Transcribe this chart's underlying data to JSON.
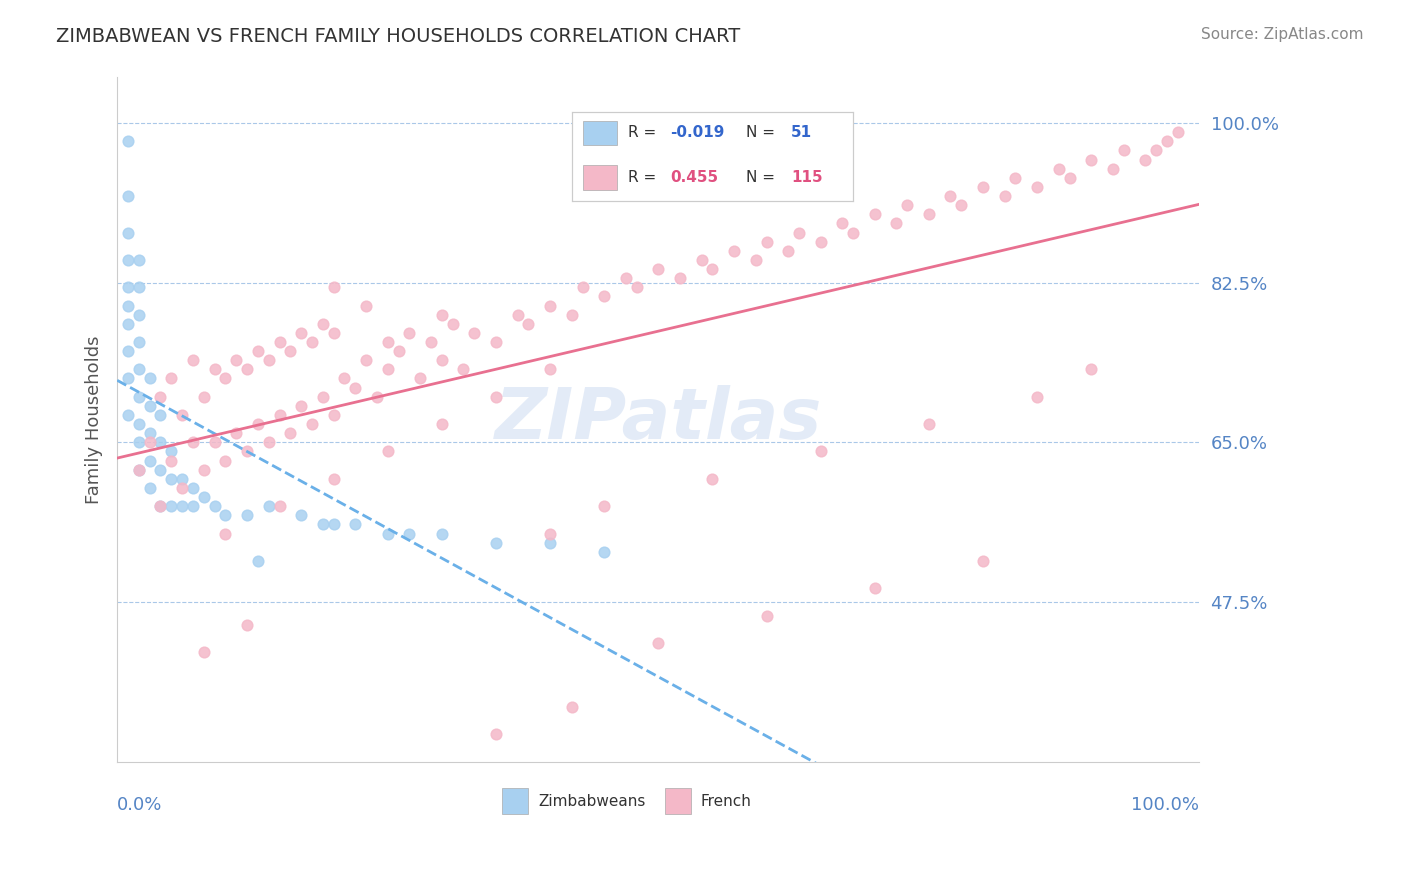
{
  "title": "ZIMBABWEAN VS FRENCH FAMILY HOUSEHOLDS CORRELATION CHART",
  "source_text": "Source: ZipAtlas.com",
  "ylabel": "Family Households",
  "y_ticks": [
    0.475,
    0.65,
    0.825,
    1.0
  ],
  "y_tick_labels": [
    "47.5%",
    "65.0%",
    "82.5%",
    "100.0%"
  ],
  "x_lim": [
    0.0,
    1.0
  ],
  "y_lim": [
    0.3,
    1.05
  ],
  "zimbabwe_color": "#a8d0f0",
  "french_color": "#f4b8c8",
  "zimbabwe_trend_color": "#6ab0e8",
  "french_trend_color": "#e87090",
  "zimbabwe_R": "-0.019",
  "zimbabwe_N": "51",
  "french_R": "0.455",
  "french_N": "115",
  "watermark": "ZIPatlas",
  "watermark_color": "#c8d8f0",
  "legend_R_label": "R = ",
  "legend_N_label": "N = ",
  "zim_R_color": "#3366cc",
  "fr_R_color": "#e05080",
  "zimbabwe_scatter_x": [
    0.01,
    0.01,
    0.01,
    0.01,
    0.01,
    0.01,
    0.01,
    0.01,
    0.01,
    0.01,
    0.02,
    0.02,
    0.02,
    0.02,
    0.02,
    0.02,
    0.02,
    0.02,
    0.02,
    0.03,
    0.03,
    0.03,
    0.03,
    0.03,
    0.04,
    0.04,
    0.04,
    0.04,
    0.05,
    0.05,
    0.05,
    0.06,
    0.06,
    0.07,
    0.07,
    0.08,
    0.09,
    0.1,
    0.12,
    0.13,
    0.14,
    0.17,
    0.19,
    0.2,
    0.22,
    0.25,
    0.27,
    0.3,
    0.35,
    0.4,
    0.45
  ],
  "zimbabwe_scatter_y": [
    0.68,
    0.72,
    0.75,
    0.78,
    0.8,
    0.82,
    0.85,
    0.88,
    0.92,
    0.98,
    0.62,
    0.65,
    0.67,
    0.7,
    0.73,
    0.76,
    0.79,
    0.82,
    0.85,
    0.6,
    0.63,
    0.66,
    0.69,
    0.72,
    0.58,
    0.62,
    0.65,
    0.68,
    0.58,
    0.61,
    0.64,
    0.58,
    0.61,
    0.58,
    0.6,
    0.59,
    0.58,
    0.57,
    0.57,
    0.52,
    0.58,
    0.57,
    0.56,
    0.56,
    0.56,
    0.55,
    0.55,
    0.55,
    0.54,
    0.54,
    0.53
  ],
  "french_scatter_x": [
    0.02,
    0.03,
    0.04,
    0.04,
    0.05,
    0.05,
    0.06,
    0.06,
    0.07,
    0.07,
    0.08,
    0.08,
    0.09,
    0.09,
    0.1,
    0.1,
    0.11,
    0.11,
    0.12,
    0.12,
    0.13,
    0.13,
    0.14,
    0.14,
    0.15,
    0.15,
    0.16,
    0.16,
    0.17,
    0.17,
    0.18,
    0.18,
    0.19,
    0.19,
    0.2,
    0.2,
    0.21,
    0.22,
    0.23,
    0.23,
    0.24,
    0.25,
    0.26,
    0.27,
    0.28,
    0.29,
    0.3,
    0.31,
    0.32,
    0.33,
    0.35,
    0.37,
    0.38,
    0.4,
    0.42,
    0.43,
    0.45,
    0.47,
    0.48,
    0.5,
    0.52,
    0.54,
    0.55,
    0.57,
    0.59,
    0.6,
    0.62,
    0.63,
    0.65,
    0.67,
    0.68,
    0.7,
    0.72,
    0.73,
    0.75,
    0.77,
    0.78,
    0.8,
    0.82,
    0.83,
    0.85,
    0.87,
    0.88,
    0.9,
    0.92,
    0.93,
    0.95,
    0.96,
    0.97,
    0.98,
    0.1,
    0.15,
    0.2,
    0.25,
    0.3,
    0.35,
    0.4,
    0.25,
    0.3,
    0.2,
    0.08,
    0.12,
    0.5,
    0.6,
    0.7,
    0.8,
    0.4,
    0.45,
    0.55,
    0.65,
    0.75,
    0.85,
    0.9,
    0.35,
    0.42
  ],
  "french_scatter_y": [
    0.62,
    0.65,
    0.58,
    0.7,
    0.63,
    0.72,
    0.6,
    0.68,
    0.65,
    0.74,
    0.62,
    0.7,
    0.65,
    0.73,
    0.63,
    0.72,
    0.66,
    0.74,
    0.64,
    0.73,
    0.67,
    0.75,
    0.65,
    0.74,
    0.68,
    0.76,
    0.66,
    0.75,
    0.69,
    0.77,
    0.67,
    0.76,
    0.7,
    0.78,
    0.68,
    0.77,
    0.72,
    0.71,
    0.74,
    0.8,
    0.7,
    0.73,
    0.75,
    0.77,
    0.72,
    0.76,
    0.74,
    0.78,
    0.73,
    0.77,
    0.76,
    0.79,
    0.78,
    0.8,
    0.79,
    0.82,
    0.81,
    0.83,
    0.82,
    0.84,
    0.83,
    0.85,
    0.84,
    0.86,
    0.85,
    0.87,
    0.86,
    0.88,
    0.87,
    0.89,
    0.88,
    0.9,
    0.89,
    0.91,
    0.9,
    0.92,
    0.91,
    0.93,
    0.92,
    0.94,
    0.93,
    0.95,
    0.94,
    0.96,
    0.95,
    0.97,
    0.96,
    0.97,
    0.98,
    0.99,
    0.55,
    0.58,
    0.61,
    0.64,
    0.67,
    0.7,
    0.73,
    0.76,
    0.79,
    0.82,
    0.42,
    0.45,
    0.43,
    0.46,
    0.49,
    0.52,
    0.55,
    0.58,
    0.61,
    0.64,
    0.67,
    0.7,
    0.73,
    0.33,
    0.36
  ]
}
